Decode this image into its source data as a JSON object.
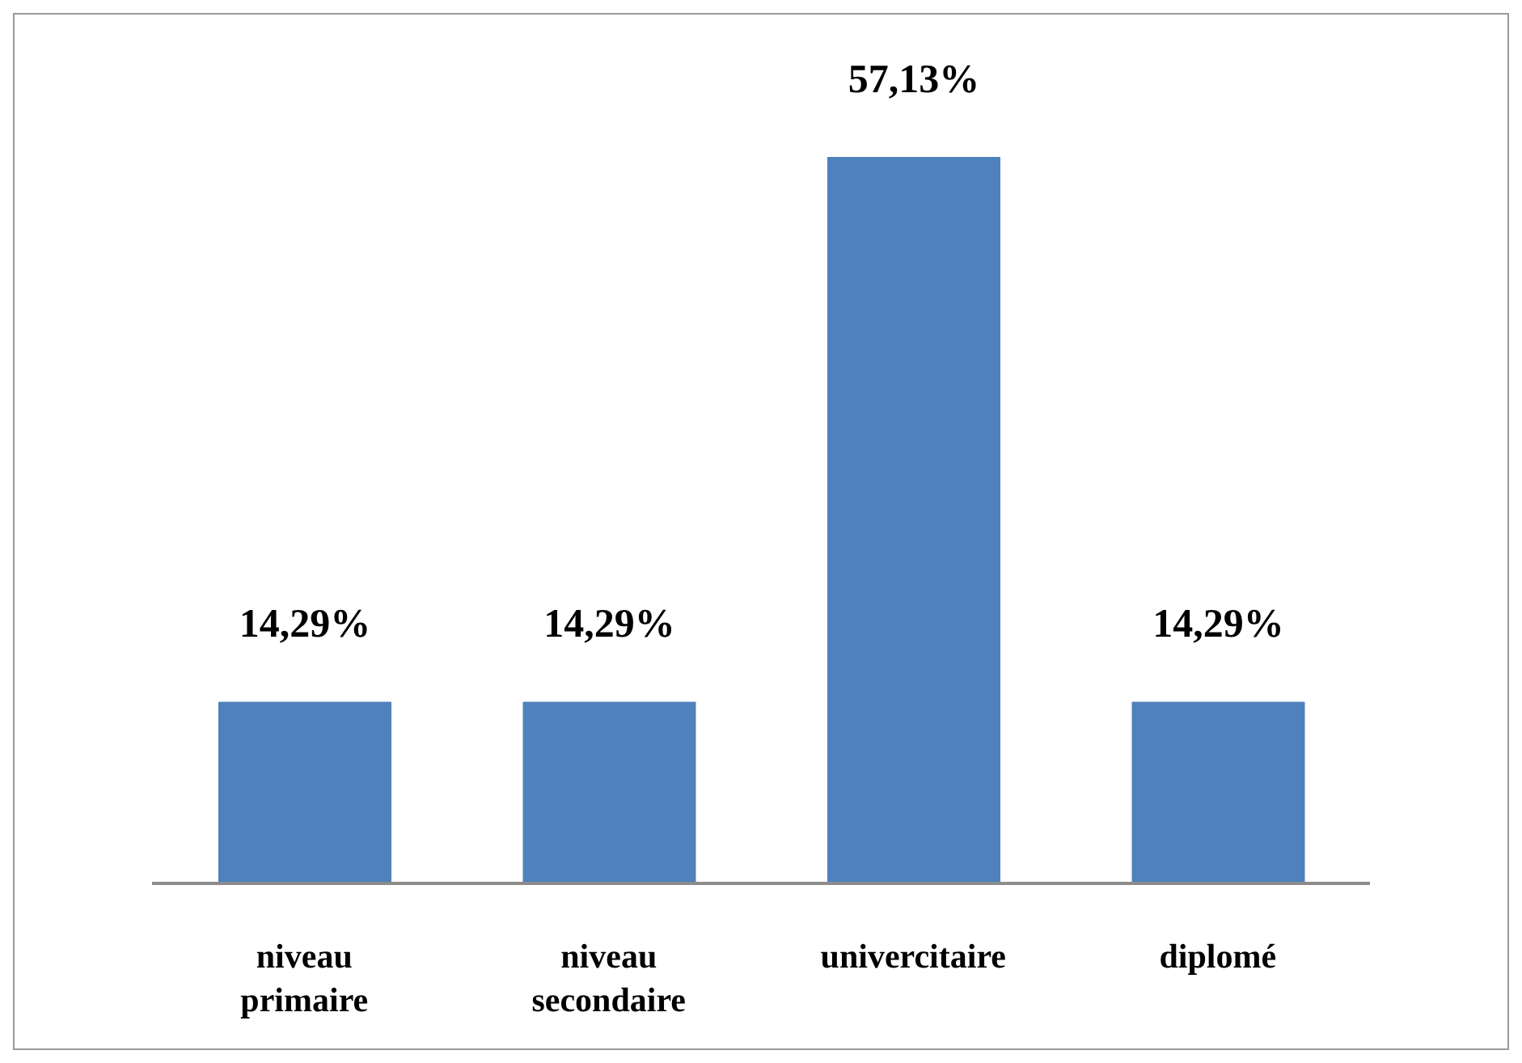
{
  "chart_data": {
    "type": "bar",
    "categories": [
      "niveau primaire",
      "niveau secondaire",
      "univercitaire",
      "diplomé"
    ],
    "values": [
      14.29,
      14.29,
      57.13,
      14.29
    ],
    "value_labels": [
      "14,29%",
      "14,29%",
      "57,13%",
      "14,29%"
    ],
    "color": "#4f81bd"
  }
}
